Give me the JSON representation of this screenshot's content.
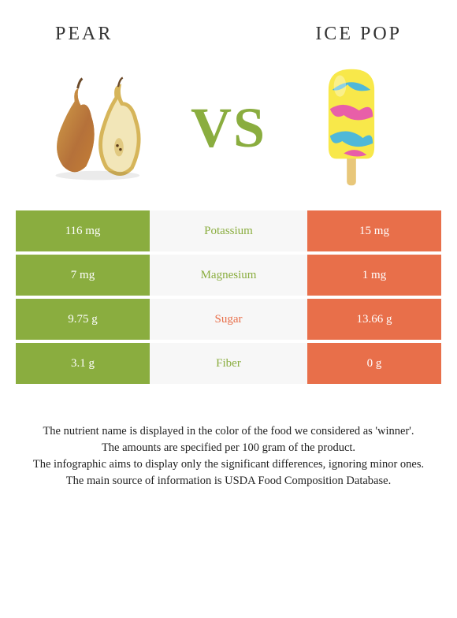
{
  "header": {
    "left_title": "Pear",
    "right_title": "Ice pop"
  },
  "vs_text": "VS",
  "colors": {
    "left": "#8aad3f",
    "right": "#e86f4a",
    "middle_bg": "#f7f7f7",
    "vs_color": "#8aad3f",
    "left_winner_text": "#8aad3f",
    "right_winner_text": "#e86f4a"
  },
  "rows": [
    {
      "left": "116 mg",
      "label": "Potassium",
      "right": "15 mg",
      "winner": "left"
    },
    {
      "left": "7 mg",
      "label": "Magnesium",
      "right": "1 mg",
      "winner": "left"
    },
    {
      "left": "9.75 g",
      "label": "Sugar",
      "right": "13.66 g",
      "winner": "right"
    },
    {
      "left": "3.1 g",
      "label": "Fiber",
      "right": "0 g",
      "winner": "left"
    }
  ],
  "footer": {
    "line1": "The nutrient name is displayed in the color of the food we considered as 'winner'.",
    "line2": "The amounts are specified per 100 gram of the product.",
    "line3": "The infographic aims to display only the significant differences, ignoring minor ones.",
    "line4": "The main source of information is USDA Food Composition Database."
  }
}
